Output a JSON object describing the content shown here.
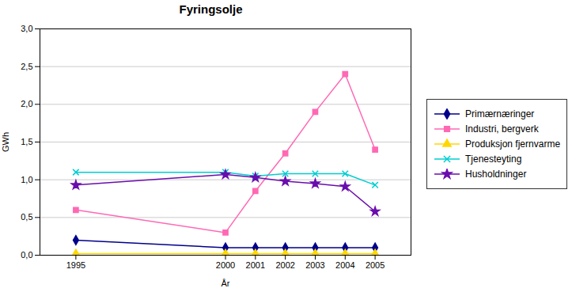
{
  "chart_data": {
    "type": "line",
    "title": "Fyringsolje",
    "xlabel": "År",
    "ylabel": "GWh",
    "x": [
      1995,
      2000,
      2001,
      2002,
      2003,
      2004,
      2005
    ],
    "xlim": [
      1993.8,
      2006.2
    ],
    "xticks": [
      1995,
      2000,
      2001,
      2002,
      2003,
      2004,
      2005
    ],
    "ylim": [
      0,
      3.0
    ],
    "yticks": [
      {
        "value": 0.0,
        "label": "0,0"
      },
      {
        "value": 0.5,
        "label": "0,5"
      },
      {
        "value": 1.0,
        "label": "1,0"
      },
      {
        "value": 1.5,
        "label": "1,5"
      },
      {
        "value": 2.0,
        "label": "2,0"
      },
      {
        "value": 2.5,
        "label": "2,5"
      },
      {
        "value": 3.0,
        "label": "3,0"
      }
    ],
    "grid": "y",
    "legend": "right",
    "series": [
      {
        "name": "Primærnæringer",
        "color": "#00008B",
        "marker": "diamond",
        "values": [
          0.2,
          0.1,
          0.1,
          0.1,
          0.1,
          0.1,
          0.1
        ]
      },
      {
        "name": "Industri, bergverk",
        "color": "#FF69B4",
        "marker": "square",
        "values": [
          0.6,
          0.3,
          0.85,
          1.35,
          1.9,
          2.4,
          1.4
        ]
      },
      {
        "name": "Produksjon fjernvarme",
        "color": "#FFD700",
        "marker": "triangle",
        "values": [
          0.02,
          0.02,
          0.02,
          0.02,
          0.02,
          0.02,
          0.02
        ]
      },
      {
        "name": "Tjenesteyting",
        "color": "#00CED1",
        "marker": "times",
        "values": [
          1.1,
          1.1,
          1.05,
          1.08,
          1.08,
          1.08,
          0.93
        ]
      },
      {
        "name": "Husholdninger",
        "color": "#6A0DAD",
        "marker": "star",
        "values": [
          0.93,
          1.07,
          1.03,
          0.98,
          0.95,
          0.91,
          0.58
        ]
      }
    ]
  }
}
